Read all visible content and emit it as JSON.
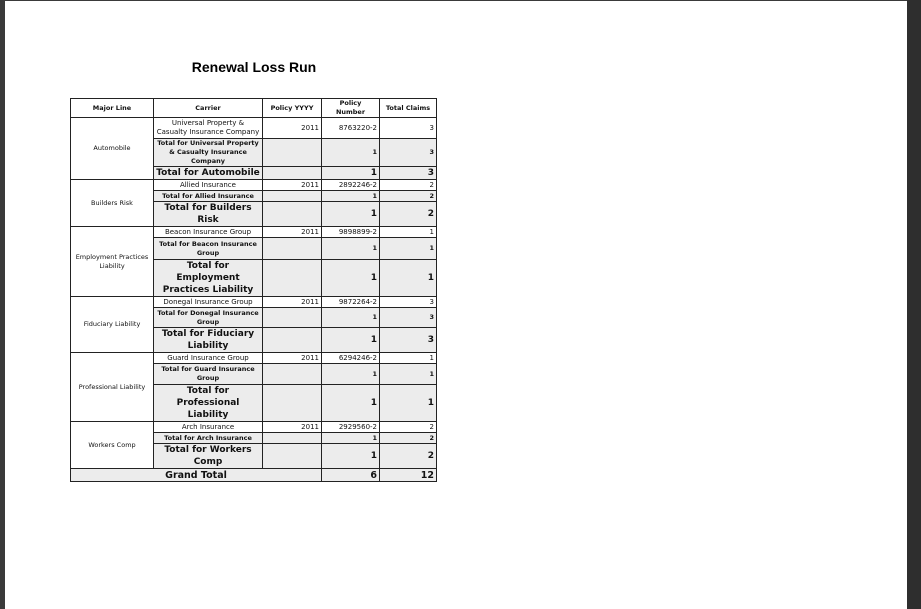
{
  "title": "Renewal Loss Run",
  "headers": [
    "Major Line",
    "Carrier",
    "Policy YYYY",
    "Policy Number",
    "Total Claims"
  ],
  "groups": [
    {
      "major_line": "Automobile",
      "carrier": "Universal Property & Casualty Insurance Company",
      "year": "2011",
      "policy_number": "8763220-2",
      "claims": "3",
      "carrier_total_label": "Total for Universal Property & Casualty Insurance Company",
      "carrier_total_policies": "1",
      "carrier_total_claims": "3",
      "line_total_label": "Total for Automobile",
      "line_total_policies": "1",
      "line_total_claims": "3"
    },
    {
      "major_line": "Builders Risk",
      "carrier": "Allied Insurance",
      "year": "2011",
      "policy_number": "2892246-2",
      "claims": "2",
      "carrier_total_label": "Total for Allied Insurance",
      "carrier_total_policies": "1",
      "carrier_total_claims": "2",
      "line_total_label": "Total for Builders Risk",
      "line_total_policies": "1",
      "line_total_claims": "2"
    },
    {
      "major_line": "Employment Practices Liability",
      "carrier": "Beacon Insurance Group",
      "year": "2011",
      "policy_number": "9898899-2",
      "claims": "1",
      "carrier_total_label": "Total for Beacon Insurance Group",
      "carrier_total_policies": "1",
      "carrier_total_claims": "1",
      "line_total_label": "Total for Employment Practices Liability",
      "line_total_policies": "1",
      "line_total_claims": "1"
    },
    {
      "major_line": "Fiduciary Liability",
      "carrier": "Donegal Insurance Group",
      "year": "2011",
      "policy_number": "9872264-2",
      "claims": "3",
      "carrier_total_label": "Total for Donegal Insurance Group",
      "carrier_total_policies": "1",
      "carrier_total_claims": "3",
      "line_total_label": "Total for Fiduciary Liability",
      "line_total_policies": "1",
      "line_total_claims": "3"
    },
    {
      "major_line": "Professional Liability",
      "carrier": "Guard Insurance Group",
      "year": "2011",
      "policy_number": "6294246-2",
      "claims": "1",
      "carrier_total_label": "Total for Guard Insurance Group",
      "carrier_total_policies": "1",
      "carrier_total_claims": "1",
      "line_total_label": "Total for Professional Liability",
      "line_total_policies": "1",
      "line_total_claims": "1"
    },
    {
      "major_line": "Workers Comp",
      "carrier": "Arch Insurance",
      "year": "2011",
      "policy_number": "2929560-2",
      "claims": "2",
      "carrier_total_label": "Total for Arch Insurance",
      "carrier_total_policies": "1",
      "carrier_total_claims": "2",
      "line_total_label": "Total for Workers Comp",
      "line_total_policies": "1",
      "line_total_claims": "2"
    }
  ],
  "grand_total": {
    "label": "Grand Total",
    "policies": "6",
    "claims": "12"
  }
}
